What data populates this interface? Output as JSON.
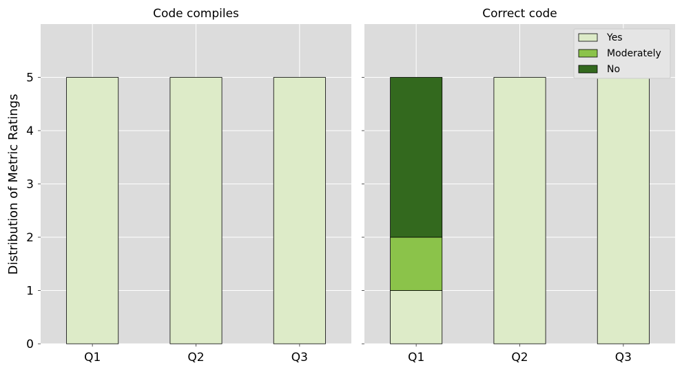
{
  "ylabel": "Distribution of Metric Ratings",
  "colors": {
    "Yes": "#ddebc8",
    "Moderately": "#8bc34a",
    "No": "#33691e",
    "panel_bg": "#dcdcdc",
    "grid": "#ffffff",
    "edge": "#000000"
  },
  "chart_data": [
    {
      "type": "bar",
      "stacked": true,
      "title": "Code compiles",
      "categories": [
        "Q1",
        "Q2",
        "Q3"
      ],
      "series": [
        {
          "name": "Yes",
          "values": [
            5,
            5,
            5
          ]
        },
        {
          "name": "Moderately",
          "values": [
            0,
            0,
            0
          ]
        },
        {
          "name": "No",
          "values": [
            0,
            0,
            0
          ]
        }
      ],
      "ylim": [
        0,
        6
      ],
      "yticks": [
        0,
        1,
        2,
        3,
        4,
        5
      ],
      "grid": true
    },
    {
      "type": "bar",
      "stacked": true,
      "title": "Correct code",
      "categories": [
        "Q1",
        "Q2",
        "Q3"
      ],
      "series": [
        {
          "name": "Yes",
          "values": [
            1,
            5,
            5
          ]
        },
        {
          "name": "Moderately",
          "values": [
            1,
            0,
            0
          ]
        },
        {
          "name": "No",
          "values": [
            3,
            0,
            0
          ]
        }
      ],
      "ylim": [
        0,
        6
      ],
      "yticks": [
        0,
        1,
        2,
        3,
        4,
        5
      ],
      "grid": true,
      "legend": "top-right"
    }
  ]
}
